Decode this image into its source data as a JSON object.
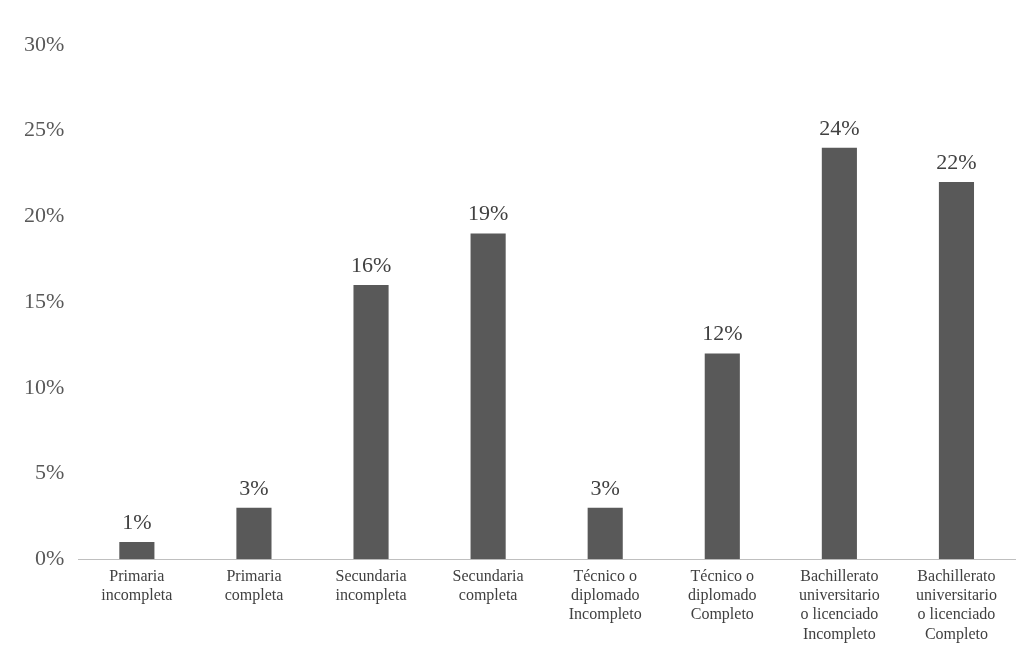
{
  "chart_data": {
    "type": "bar",
    "categories": [
      "Primaria incompleta",
      "Primaria completa",
      "Secundaria incompleta",
      "Secundaria completa",
      "Técnico o diplomado Incompleto",
      "Técnico o diplomado Completo",
      "Bachillerato universitario o licenciado Incompleto",
      "Bachillerato universitario o licenciado Completo"
    ],
    "values": [
      1,
      3,
      16,
      19,
      3,
      12,
      24,
      22
    ],
    "value_labels": [
      "1%",
      "3%",
      "16%",
      "19%",
      "3%",
      "12%",
      "24%",
      "22%"
    ],
    "color": "#595959",
    "ylim": [
      0,
      30
    ],
    "yticks": [
      {
        "value": 0,
        "label": "0%"
      },
      {
        "value": 5,
        "label": "5%"
      },
      {
        "value": 10,
        "label": "10%"
      },
      {
        "value": 15,
        "label": "15%"
      },
      {
        "value": 20,
        "label": "20%"
      },
      {
        "value": 25,
        "label": "25%"
      },
      {
        "value": 30,
        "label": "30%"
      }
    ],
    "grid": false,
    "legend": false
  }
}
